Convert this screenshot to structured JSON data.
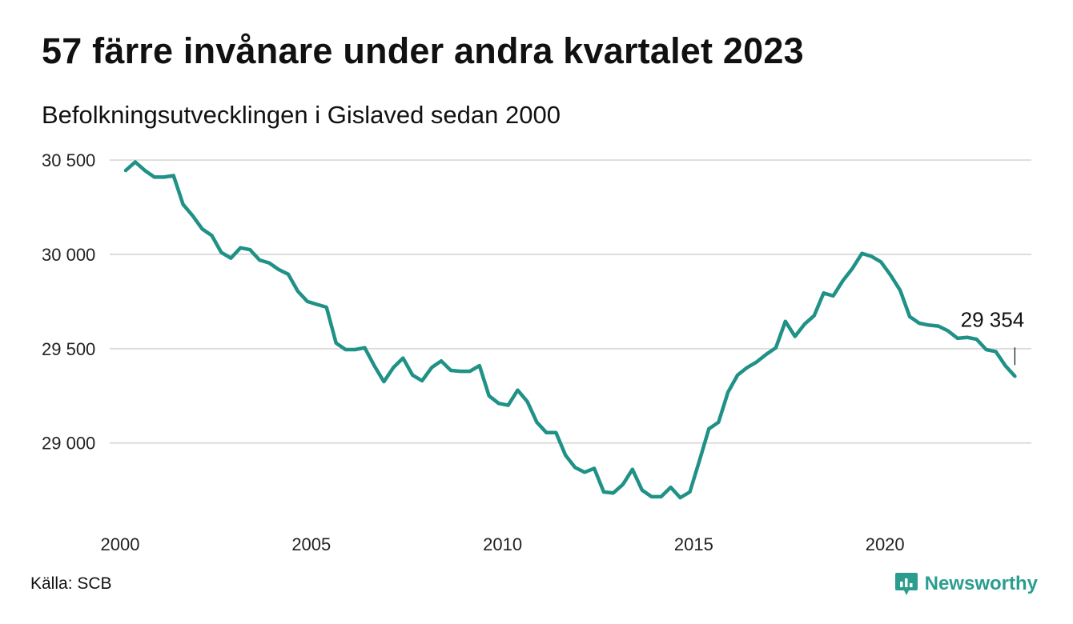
{
  "title": "57 färre invånare under andra kvartalet 2023",
  "subtitle": "Befolkningsutvecklingen i Gislaved sedan 2000",
  "source": "Källa: SCB",
  "brand": "Newsworthy",
  "colors": {
    "line": "#1f9186",
    "grid": "#dddddd",
    "brand": "#2a9d8f"
  },
  "chart_data": {
    "type": "line",
    "xlim": [
      2000,
      2024.1
    ],
    "ylim": [
      28600,
      30560
    ],
    "grid": true,
    "xticks": [
      2000,
      2005,
      2010,
      2015,
      2020
    ],
    "xtick_labels": [
      "2000",
      "2005",
      "2010",
      "2015",
      "2020"
    ],
    "yticks": [
      29000,
      29500,
      30000,
      30500
    ],
    "ytick_labels": [
      "29 000",
      "29 500",
      "30 000",
      "30 500"
    ],
    "end_label": "29 354",
    "series": [
      {
        "x": [
          2000.0,
          2000.25,
          2000.5,
          2000.75,
          2001.0,
          2001.25,
          2001.5,
          2001.75,
          2002.0,
          2002.25,
          2002.5,
          2002.75,
          2003.0,
          2003.25,
          2003.5,
          2003.75,
          2004.0,
          2004.25,
          2004.5,
          2004.75,
          2005.0,
          2005.25,
          2005.5,
          2005.75,
          2006.0,
          2006.25,
          2006.5,
          2006.75,
          2007.0,
          2007.25,
          2007.5,
          2007.75,
          2008.0,
          2008.25,
          2008.5,
          2008.75,
          2009.0,
          2009.25,
          2009.5,
          2009.75,
          2010.0,
          2010.25,
          2010.5,
          2010.75,
          2011.0,
          2011.25,
          2011.5,
          2011.75,
          2012.0,
          2012.25,
          2012.5,
          2012.75,
          2013.0,
          2013.25,
          2013.5,
          2013.75,
          2014.0,
          2014.25,
          2014.5,
          2014.75,
          2015.0,
          2015.25,
          2015.5,
          2015.75,
          2016.0,
          2016.25,
          2016.5,
          2016.75,
          2017.0,
          2017.25,
          2017.5,
          2017.75,
          2018.0,
          2018.25,
          2018.5,
          2018.75,
          2019.0,
          2019.25,
          2019.5,
          2019.75,
          2020.0,
          2020.25,
          2020.5,
          2020.75,
          2021.0,
          2021.25,
          2021.5,
          2021.75,
          2022.0,
          2022.25,
          2022.5,
          2022.75,
          2023.0,
          2023.25
        ],
        "y": [
          30445,
          30490,
          30445,
          30410,
          30410,
          30418,
          30265,
          30205,
          30135,
          30100,
          30010,
          29980,
          30035,
          30025,
          29970,
          29955,
          29920,
          29895,
          29805,
          29750,
          29735,
          29720,
          29530,
          29495,
          29495,
          29505,
          29410,
          29325,
          29400,
          29450,
          29360,
          29330,
          29400,
          29435,
          29385,
          29380,
          29380,
          29410,
          29250,
          29210,
          29200,
          29280,
          29220,
          29110,
          29055,
          29055,
          28935,
          28870,
          28845,
          28865,
          28740,
          28735,
          28780,
          28860,
          28750,
          28715,
          28715,
          28765,
          28710,
          28740,
          28905,
          29075,
          29110,
          29270,
          29360,
          29400,
          29430,
          29470,
          29505,
          29645,
          29565,
          29630,
          29675,
          29795,
          29780,
          29860,
          29925,
          30005,
          29990,
          29960,
          29890,
          29810,
          29670,
          29635,
          29625,
          29620,
          29595,
          29555,
          29560,
          29550,
          29495,
          29485,
          29410,
          29354
        ]
      }
    ]
  }
}
